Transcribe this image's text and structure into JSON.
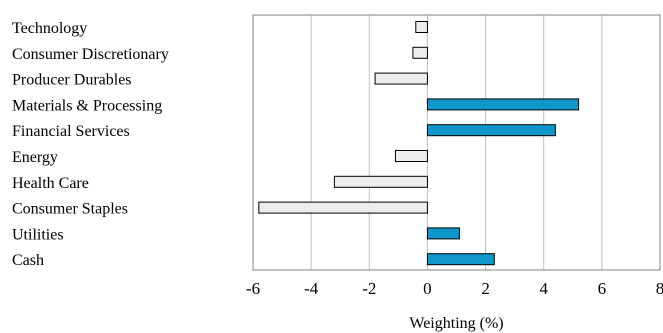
{
  "chart_data": {
    "type": "bar",
    "orientation": "horizontal",
    "categories": [
      "Technology",
      "Consumer Discretionary",
      "Producer Durables",
      "Materials & Processing",
      "Financial Services",
      "Energy",
      "Health Care",
      "Consumer Staples",
      "Utilities",
      "Cash"
    ],
    "values": [
      -0.4,
      -0.5,
      -1.8,
      5.2,
      4.4,
      -1.1,
      -3.2,
      -5.8,
      1.1,
      2.3
    ],
    "xlabel": "Weighting (%)",
    "ylabel": "",
    "xlim": [
      -6,
      8
    ],
    "xticks": [
      -6,
      -4,
      -2,
      0,
      2,
      4,
      6,
      8
    ],
    "xtick_labels": [
      "-6",
      "-4",
      "-2",
      "0",
      "2",
      "4",
      "6",
      "8"
    ],
    "grid": "vertical",
    "colors": {
      "positive": "#0f97c9",
      "negative": "#ececec",
      "bar_edge": "#000000",
      "grid": "#c0c0c0",
      "frame": "#808080"
    }
  }
}
